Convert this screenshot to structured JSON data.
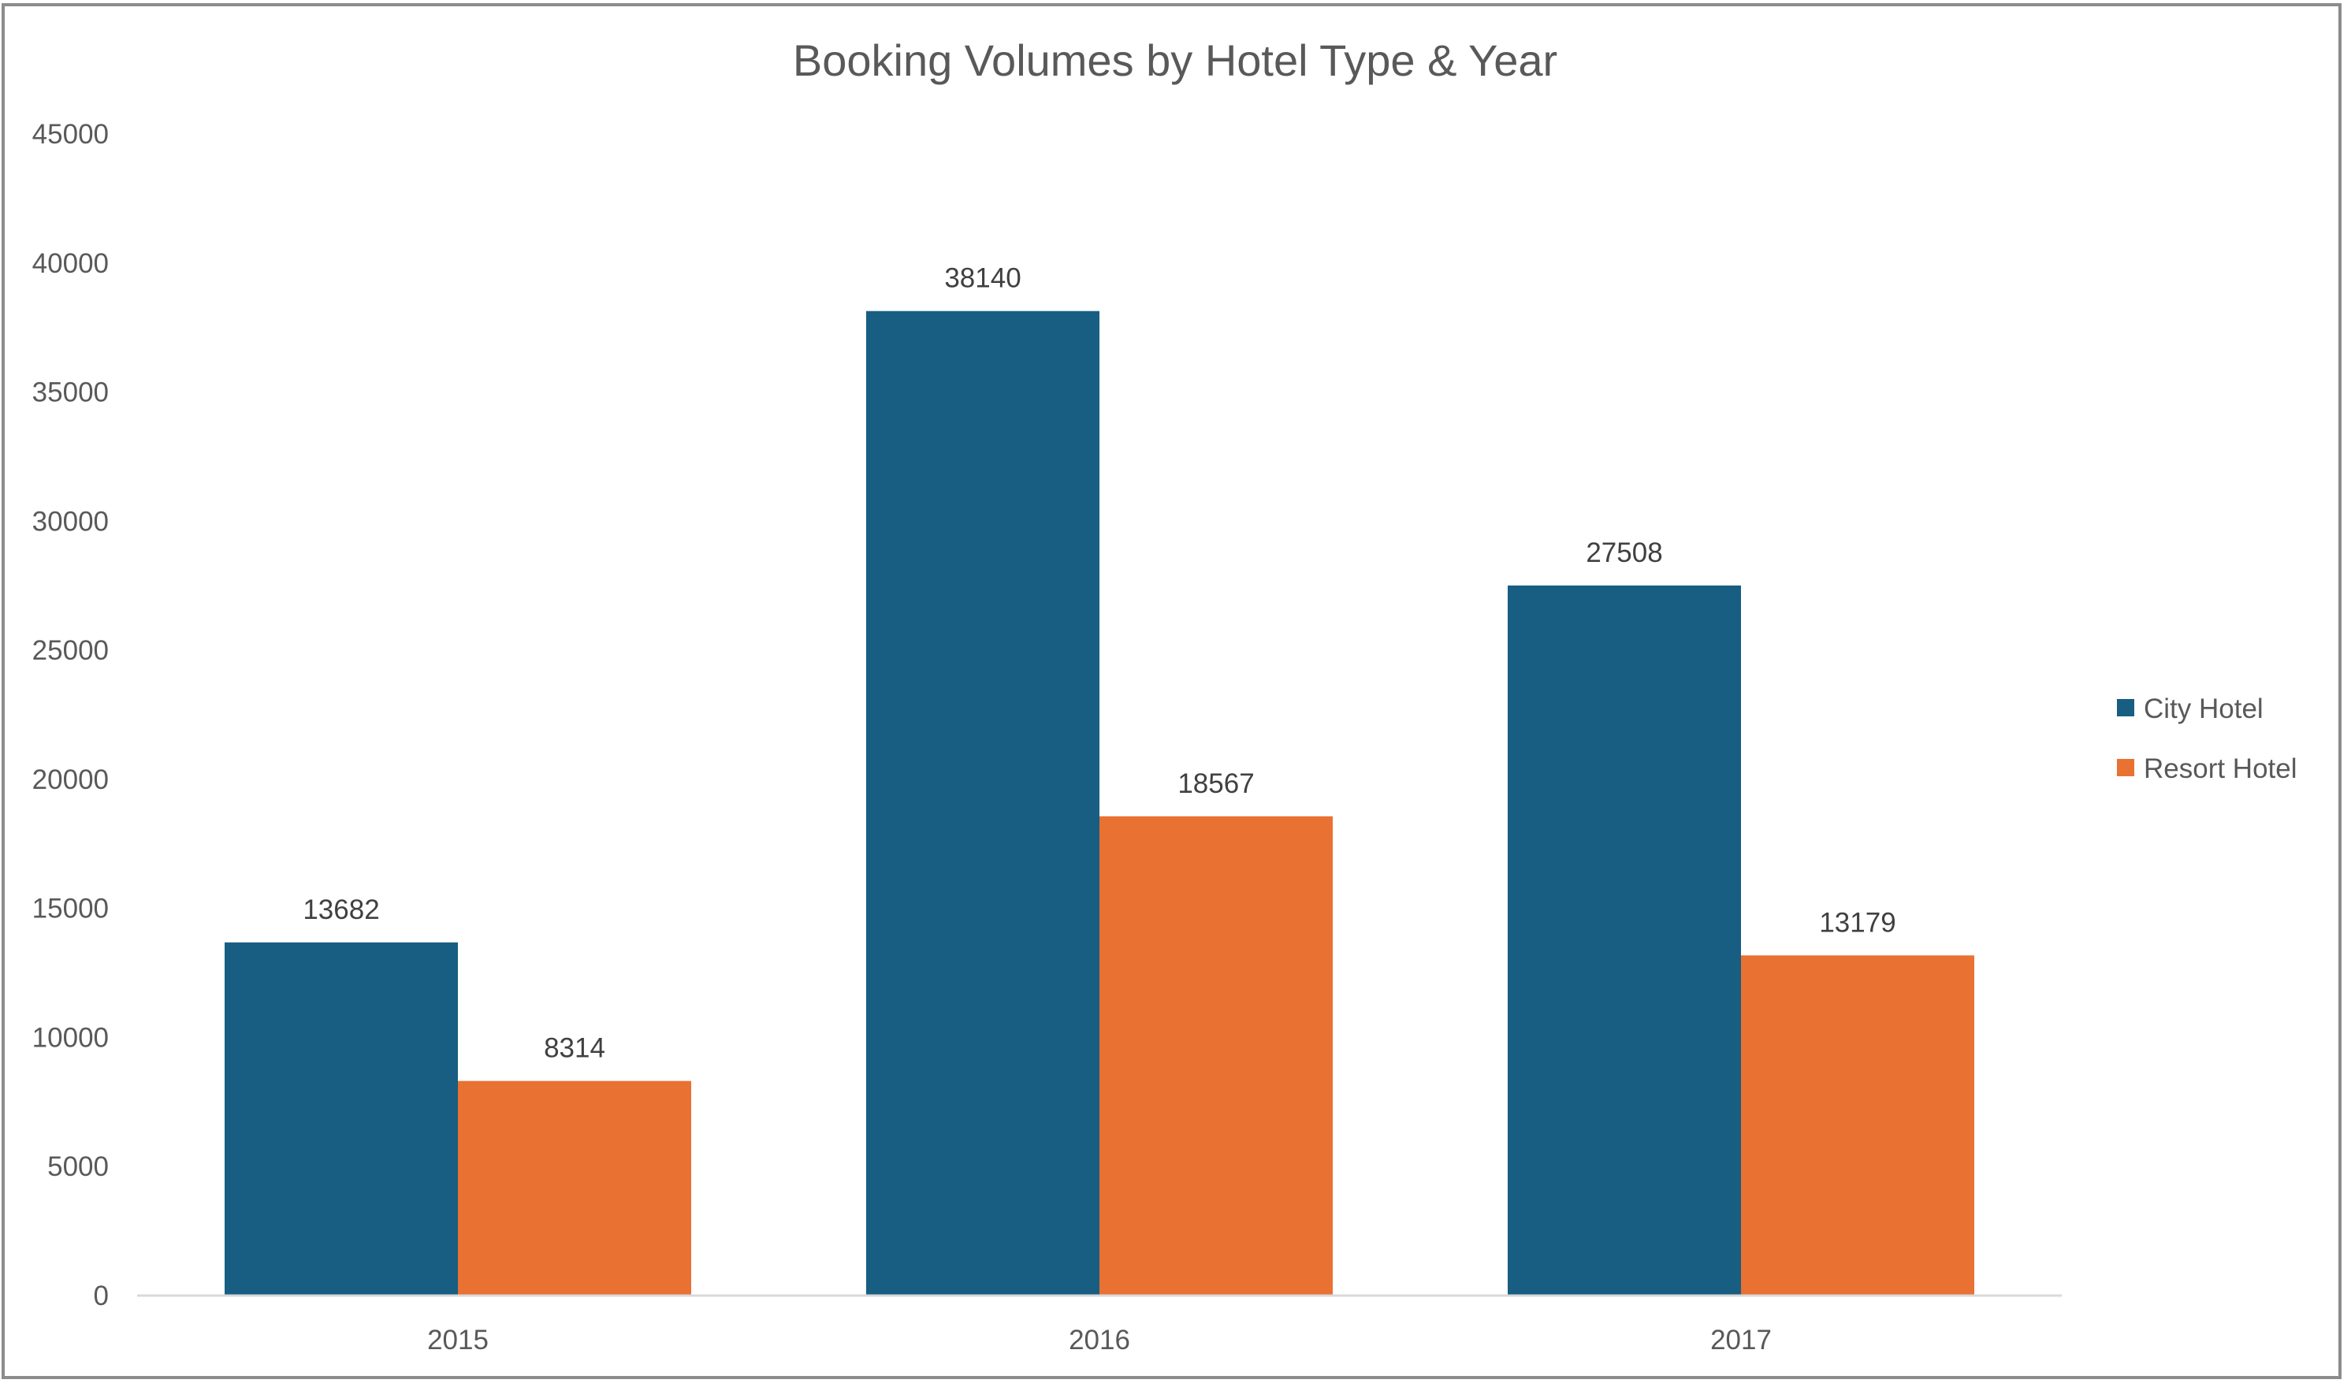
{
  "chart_data": {
    "type": "bar",
    "title": "Booking Volumes by Hotel Type & Year",
    "categories": [
      "2015",
      "2016",
      "2017"
    ],
    "series": [
      {
        "name": "City Hotel",
        "color": "#175E82",
        "values": [
          13682,
          38140,
          27508
        ]
      },
      {
        "name": "Resort Hotel",
        "color": "#E97132",
        "values": [
          8314,
          18567,
          13179
        ]
      }
    ],
    "xlabel": "",
    "ylabel": "",
    "ylim": [
      0,
      45000
    ],
    "yticks": [
      0,
      5000,
      10000,
      15000,
      20000,
      25000,
      30000,
      35000,
      40000,
      45000
    ],
    "grid": false,
    "legend_position": "right",
    "data_labels": true
  },
  "colors": {
    "axis_line": "#D9D9D9",
    "frame": "#8C8C8C"
  }
}
